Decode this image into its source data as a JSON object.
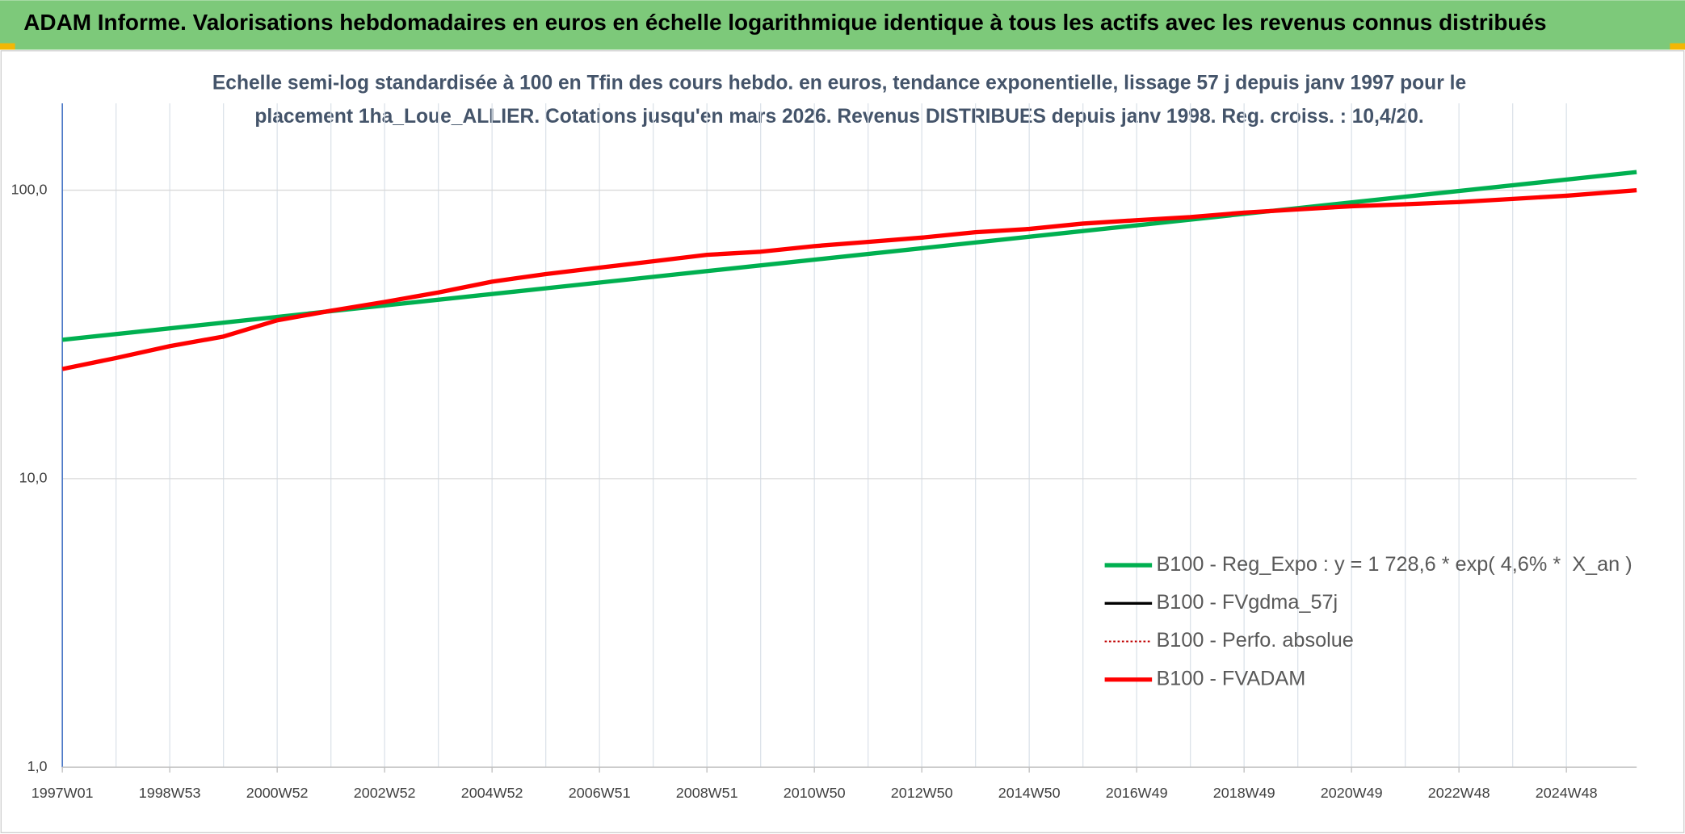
{
  "header": {
    "title": "ADAM Informe. Valorisations hebdomadaires en euros en échelle logarithmique identique à tous les actifs avec les revenus connus distribués"
  },
  "chart_data": {
    "type": "line",
    "title": [
      "Echelle semi-log standardisée à 100 en Tfin des cours hebdo. en euros, tendance exponentielle, lissage 57 j depuis janv 1997 pour le",
      "placement 1ha_Loue_ALLIER. Cotations jusqu'en mars 2026. Revenus DISTRIBUES depuis janv 1998. Reg. croiss. : 10,4/20."
    ],
    "log_y": true,
    "grid": true,
    "legend": "right",
    "xlim": [
      0,
      1524
    ],
    "xticks": [
      {
        "value": 0,
        "label": "1997W01"
      },
      {
        "value": 104,
        "label": "1998W53"
      },
      {
        "value": 208,
        "label": "2000W52"
      },
      {
        "value": 312,
        "label": "2002W52"
      },
      {
        "value": 416,
        "label": "2004W52"
      },
      {
        "value": 520,
        "label": "2006W51"
      },
      {
        "value": 624,
        "label": "2008W51"
      },
      {
        "value": 728,
        "label": "2010W50"
      },
      {
        "value": 832,
        "label": "2012W50"
      },
      {
        "value": 936,
        "label": "2014W50"
      },
      {
        "value": 1040,
        "label": "2016W49"
      },
      {
        "value": 1144,
        "label": "2018W49"
      },
      {
        "value": 1248,
        "label": "2020W49"
      },
      {
        "value": 1352,
        "label": "2022W48"
      },
      {
        "value": 1456,
        "label": "2024W48"
      }
    ],
    "ylim": [
      1,
      200
    ],
    "yticks": [
      {
        "value": 1,
        "label": "1,0"
      },
      {
        "value": 10,
        "label": "10,0"
      },
      {
        "value": 100,
        "label": "100,0"
      }
    ],
    "series": [
      {
        "name": "B100 - Reg_Expo : y = 1 728,6 * exp( 4,6% *  X_an )",
        "color": "#00b050",
        "x": [
          0,
          1524
        ],
        "values": [
          30.3,
          115.6
        ]
      },
      {
        "name": "B100 - FVgdma_57j",
        "color": "#000000"
      },
      {
        "name": "B100 - Perfo. absolue",
        "color": "#c00000",
        "dash": "dotted"
      },
      {
        "name": "B100 - FVADAM",
        "color": "#ff0000",
        "x": [
          0,
          52,
          104,
          156,
          208,
          260,
          312,
          364,
          416,
          468,
          520,
          572,
          624,
          676,
          728,
          780,
          832,
          884,
          936,
          988,
          1040,
          1092,
          1144,
          1196,
          1248,
          1300,
          1352,
          1404,
          1456,
          1524
        ],
        "values": [
          24.0,
          26.2,
          28.8,
          31.1,
          35.4,
          38.2,
          41.0,
          44.2,
          48.2,
          51.2,
          53.9,
          56.7,
          59.7,
          61.2,
          64.0,
          66.2,
          68.5,
          71.5,
          73.4,
          76.6,
          78.7,
          80.7,
          83.6,
          85.8,
          88.0,
          89.4,
          91.0,
          93.3,
          95.7,
          100.0
        ]
      }
    ]
  }
}
